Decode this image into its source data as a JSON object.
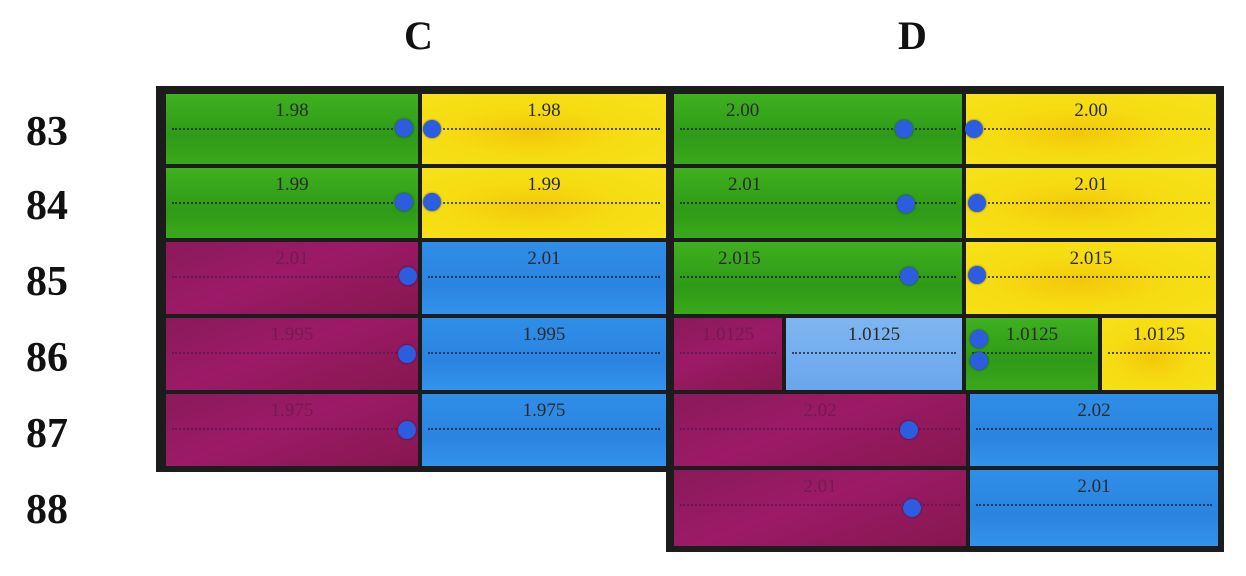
{
  "columns": {
    "c": "C",
    "d": "D"
  },
  "rows": [
    "83",
    "84",
    "85",
    "86",
    "87",
    "88"
  ],
  "colors": {
    "green": "#34a81a",
    "yellow": "#f5d90f",
    "magenta": "#951a60",
    "blue": "#2d8be6",
    "light_blue": "#6fa9ee",
    "pin": "#2c5ce0"
  },
  "cells": {
    "c83_green": "1.98",
    "c83_yellow": "1.98",
    "c84_green": "1.99",
    "c84_yellow": "1.99",
    "c85_magenta": "2.01",
    "c85_blue": "2.01",
    "c86_magenta": "1.995",
    "c86_blue": "1.995",
    "c87_magenta": "1.975",
    "c87_blue": "1.975",
    "d83_green": "2.00",
    "d83_yellow": "2.00",
    "d84_green": "2.01",
    "d84_yellow": "2.01",
    "d85_green": "2.015",
    "d85_yellow": "2.015",
    "d86_magenta": "1.0125",
    "d86_lightblue": "1.0125",
    "d86_green": "1.0125",
    "d86_yellow": "1.0125",
    "d87_magenta": "2.02",
    "d87_blue": "2.02",
    "d88_magenta": "2.01",
    "d88_blue": "2.01"
  }
}
